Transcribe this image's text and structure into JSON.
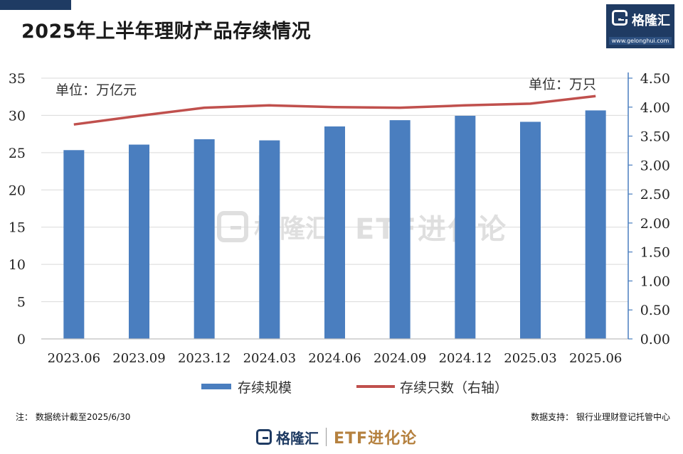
{
  "title": "2025年上半年理财产品存续情况",
  "brand": {
    "logo_text": "格隆汇",
    "logo_url": "www.gelonghui.com",
    "footer_logo_text": "格隆汇",
    "footer_brand": "ETF进化论"
  },
  "notes": {
    "left": "注： 数据统计截至2025/6/30",
    "right": "数据支持： 银行业理财登记托管中心"
  },
  "colors": {
    "bar": "#4a7ebf",
    "line": "#c0504d",
    "axis_right": "#4a7ebf",
    "grid": "#d9d9d9",
    "brand_navy": "#1f3b63",
    "brand_gold": "#b5813f"
  },
  "chart_data": {
    "type": "bar+line",
    "title": "2025年上半年理财产品存续情况",
    "categories": [
      "2023.06",
      "2023.09",
      "2023.12",
      "2024.03",
      "2024.06",
      "2024.09",
      "2024.12",
      "2025.03",
      "2025.06"
    ],
    "series": [
      {
        "name": "存续规模",
        "type": "bar",
        "axis": "left",
        "values": [
          25.34,
          26.08,
          26.8,
          26.65,
          28.52,
          29.36,
          29.95,
          29.14,
          30.67
        ]
      },
      {
        "name": "存续只数（右轴）",
        "type": "line",
        "axis": "right",
        "values": [
          3.7,
          3.85,
          3.99,
          4.03,
          4.0,
          3.99,
          4.03,
          4.06,
          4.19
        ]
      }
    ],
    "left_axis": {
      "unit_label": "单位：万亿元",
      "range": [
        0,
        35
      ],
      "ticks": [
        "0",
        "5",
        "10",
        "15",
        "20",
        "25",
        "30",
        "35"
      ]
    },
    "right_axis": {
      "unit_label": "单位：万只",
      "range": [
        0,
        4.5
      ],
      "ticks": [
        "0.00",
        "0.50",
        "1.00",
        "1.50",
        "2.00",
        "2.50",
        "3.00",
        "3.50",
        "4.00",
        "4.50"
      ]
    },
    "grid": true,
    "legend_position": "bottom"
  }
}
